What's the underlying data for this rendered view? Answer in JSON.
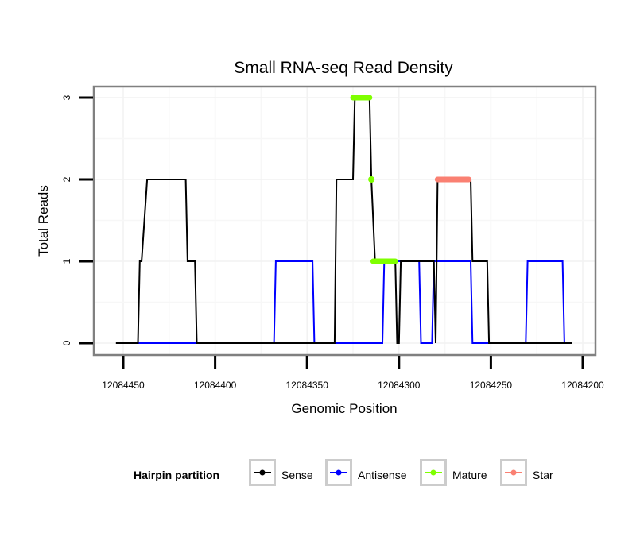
{
  "chart_data": {
    "type": "line",
    "title": "Small RNA-seq Read Density",
    "xlabel": "Genomic Position",
    "ylabel": "Total Reads",
    "x_reversed": true,
    "xlim": [
      12084454,
      12084204
    ],
    "ylim": [
      -0.15,
      3.15
    ],
    "x_ticks": [
      12084450,
      12084400,
      12084350,
      12084300,
      12084250,
      12084200
    ],
    "x_tick_labels": [
      "12084450",
      "12084400",
      "12084350",
      "12084300",
      "12084250",
      "12084200"
    ],
    "y_ticks": [
      0,
      1,
      2,
      3
    ],
    "y_tick_labels": [
      "0",
      "1",
      "2",
      "3"
    ],
    "grid": true,
    "legend": {
      "title": "Hairpin partition",
      "position": "bottom",
      "entries": [
        {
          "label": "Sense",
          "color": "#000000"
        },
        {
          "label": "Antisense",
          "color": "#0000FF"
        },
        {
          "label": "Mature",
          "color": "#7FFF00"
        },
        {
          "label": "Star",
          "color": "#FA8072"
        }
      ]
    },
    "series": [
      {
        "name": "Sense",
        "color": "#000000",
        "points": [
          [
            12084454,
            0
          ],
          [
            12084442,
            0
          ],
          [
            12084441,
            1
          ],
          [
            12084440,
            1
          ],
          [
            12084437,
            2
          ],
          [
            12084416,
            2
          ],
          [
            12084415,
            1
          ],
          [
            12084411,
            1
          ],
          [
            12084410,
            0
          ],
          [
            12084335,
            0
          ],
          [
            12084334,
            2
          ],
          [
            12084325,
            2
          ],
          [
            12084324,
            3
          ],
          [
            12084316,
            3
          ],
          [
            12084315,
            2
          ],
          [
            12084313,
            1
          ],
          [
            12084302,
            1
          ],
          [
            12084301,
            0
          ],
          [
            12084300,
            0
          ],
          [
            12084299,
            1
          ],
          [
            12084281,
            1
          ],
          [
            12084280,
            0
          ],
          [
            12084279,
            2
          ],
          [
            12084261,
            2
          ],
          [
            12084260,
            1
          ],
          [
            12084252,
            1
          ],
          [
            12084251,
            0
          ],
          [
            12084206,
            0
          ]
        ]
      },
      {
        "name": "Antisense",
        "color": "#0000FF",
        "points": [
          [
            12084442,
            0
          ],
          [
            12084368,
            0
          ],
          [
            12084367,
            1
          ],
          [
            12084347,
            1
          ],
          [
            12084346,
            0
          ],
          [
            12084309,
            0
          ],
          [
            12084308,
            1
          ],
          [
            12084289,
            1
          ],
          [
            12084288,
            0
          ],
          [
            12084282,
            0
          ],
          [
            12084281,
            1
          ],
          [
            12084261,
            1
          ],
          [
            12084260,
            0
          ],
          [
            12084231,
            0
          ],
          [
            12084230,
            1
          ],
          [
            12084211,
            1
          ],
          [
            12084210,
            0
          ],
          [
            12084206,
            0
          ]
        ]
      }
    ],
    "segments": [
      {
        "name": "Mature",
        "color": "#7FFF00",
        "x_start": 12084325,
        "x_end": 12084316,
        "y": 3
      },
      {
        "name": "Mature",
        "color": "#7FFF00",
        "x_start": 12084315,
        "x_end": 12084315,
        "y": 2
      },
      {
        "name": "Mature",
        "color": "#7FFF00",
        "x_start": 12084314,
        "x_end": 12084302,
        "y": 1
      },
      {
        "name": "Star",
        "color": "#FA8072",
        "x_start": 12084279,
        "x_end": 12084262,
        "y": 2
      }
    ]
  }
}
